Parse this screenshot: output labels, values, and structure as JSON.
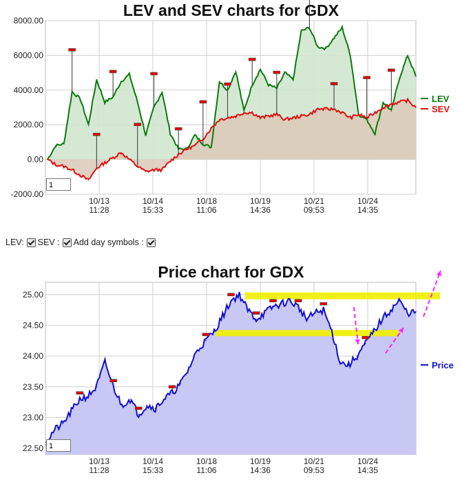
{
  "chart_data": [
    {
      "type": "line",
      "title": "LEV and SEV charts for GDX",
      "xlabel": "",
      "ylabel": "",
      "ylim": [
        -2000,
        8000
      ],
      "y_ticks": [
        "8000.00",
        "6000.00",
        "4000.00",
        "2000.00",
        "0.00",
        "-2000.00"
      ],
      "y_tick_values": [
        8000,
        6000,
        4000,
        2000,
        0,
        -2000
      ],
      "x_ticks": [
        {
          "date": "10/13",
          "time": "11:28"
        },
        {
          "date": "10/14",
          "time": "15:33"
        },
        {
          "date": "10/18",
          "time": "11:06"
        },
        {
          "date": "10/19",
          "time": "14:36"
        },
        {
          "date": "10/21",
          "time": "09:53"
        },
        {
          "date": "10/24",
          "time": "14:35"
        }
      ],
      "grid": true,
      "legend": "right",
      "input_value": "1",
      "series": [
        {
          "name": "LEV",
          "color": "#0a7a0a",
          "values": [
            0,
            800,
            900,
            3900,
            3500,
            2000,
            4600,
            3300,
            3600,
            4500,
            4900,
            3300,
            1400,
            3000,
            3900,
            1500,
            600,
            600,
            1400,
            900,
            700,
            4500,
            4000,
            5100,
            2800,
            4300,
            5200,
            4300,
            4100,
            5000,
            4600,
            7400,
            7600,
            6500,
            6400,
            7000,
            7600,
            6000,
            2600,
            2300,
            1500,
            3300,
            2800,
            4700,
            6000,
            4800
          ]
        },
        {
          "name": "SEV",
          "color": "#e01010",
          "values": [
            0,
            -300,
            -400,
            -600,
            -900,
            -1200,
            -500,
            -200,
            100,
            400,
            0,
            -400,
            -700,
            -600,
            -600,
            -100,
            300,
            600,
            800,
            1200,
            1800,
            2300,
            2400,
            2500,
            2700,
            2700,
            2400,
            2500,
            2600,
            2300,
            2400,
            2500,
            2600,
            2900,
            2900,
            2900,
            2700,
            2400,
            2600,
            2400,
            2700,
            3000,
            3200,
            3300,
            3400,
            3000
          ]
        }
      ]
    },
    {
      "type": "area",
      "title": "Price chart for GDX",
      "xlabel": "",
      "ylabel": "",
      "ylim": [
        22.4,
        25.2
      ],
      "y_ticks": [
        "25.00",
        "24.50",
        "24.00",
        "23.50",
        "23.00",
        "22.50"
      ],
      "y_tick_values": [
        25.0,
        24.5,
        24.0,
        23.5,
        23.0,
        22.5
      ],
      "x_ticks": [
        {
          "date": "10/13",
          "time": "11:28"
        },
        {
          "date": "10/14",
          "time": "15:33"
        },
        {
          "date": "10/18",
          "time": "11:06"
        },
        {
          "date": "10/19",
          "time": "14:36"
        },
        {
          "date": "10/21",
          "time": "09:53"
        },
        {
          "date": "10/24",
          "time": "14:35"
        }
      ],
      "grid": true,
      "legend": "right",
      "input_value": "1",
      "series": [
        {
          "name": "Price",
          "color": "#1010d0",
          "values": [
            22.6,
            22.8,
            22.9,
            23.1,
            23.3,
            23.35,
            23.5,
            23.9,
            23.5,
            23.2,
            23.3,
            23.05,
            23.2,
            23.15,
            23.3,
            23.4,
            23.55,
            23.8,
            24.1,
            24.25,
            24.4,
            24.65,
            24.9,
            25.0,
            24.75,
            24.6,
            24.7,
            24.8,
            24.85,
            24.9,
            24.8,
            24.6,
            24.7,
            24.75,
            24.4,
            23.9,
            23.85,
            24.0,
            24.2,
            24.4,
            24.6,
            24.75,
            24.9,
            24.7,
            24.72
          ]
        }
      ],
      "support_levels": [
        24.98,
        24.38
      ]
    }
  ],
  "controls": {
    "lev_label": "LEV:",
    "sev_label": "SEV :",
    "day_symbols_label": "Add day symbols :"
  },
  "colors": {
    "lev": "#0a7a0a",
    "sev": "#e01010",
    "price": "#1010d0",
    "lev_fill": "#cfe6cf",
    "sev_fill": "#dcc9b7",
    "neg_fill": "#f3d0d0",
    "price_fill": "#c8c8f4",
    "band": "#f0f000",
    "arrow": "#ff20ff",
    "marker": "#dd0000"
  }
}
